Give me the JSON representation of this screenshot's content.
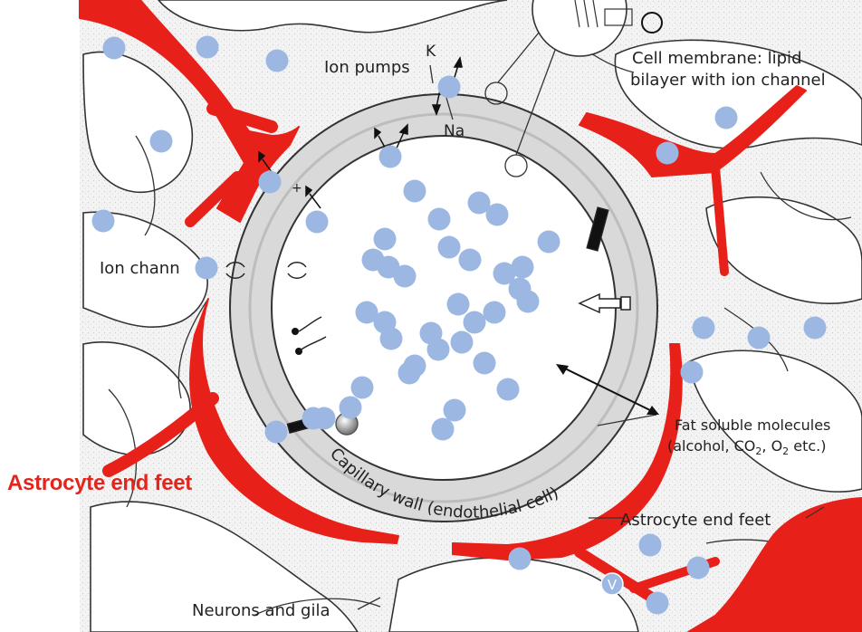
{
  "labels": {
    "ion_pumps": "Ion pumps",
    "k": "K",
    "na": "Na",
    "cell_membrane_line1": "Cell membrane: lipid",
    "cell_membrane_line2": "bilayer with ion channel",
    "ion_channels": "Ion chann",
    "fat_soluble_line1": "Fat soluble molecules",
    "fat_soluble_line2": "(alcohol, CO",
    "fat_soluble_sub1": "2",
    "fat_soluble_mid": ", O",
    "fat_soluble_sub2": "2",
    "fat_soluble_end": " etc.)",
    "astrocyte_small": "Astrocyte end feet",
    "capillary_wall": "Capillary wall (endothelial cell)",
    "neurons": "Neurons and gila",
    "astrocyte_big": "Astrocyte end feet",
    "v_marker": "V",
    "plus": "+"
  },
  "colors": {
    "astrocyte_red": "#e8201a",
    "molecule_blue": "#9cb8e2",
    "wall_gray": "#d9d9d9",
    "label_red": "#e3261d"
  },
  "molecules": {
    "count": 52
  }
}
